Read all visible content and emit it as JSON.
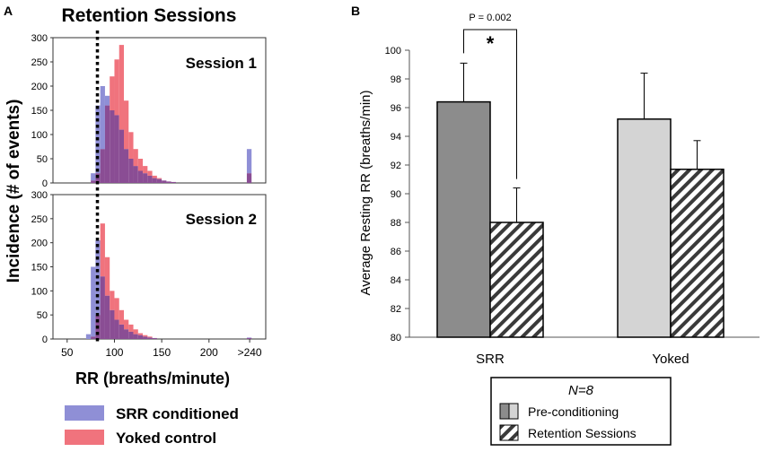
{
  "colors": {
    "srr": "#8f8fd6",
    "yoked": "#f0737d",
    "overlap": "#8a4d94",
    "bar_srr_pre": "#8c8c8c",
    "bar_yoked_pre": "#d4d4d4"
  },
  "panel_a": {
    "letter": "A",
    "title": "Retention Sessions",
    "ylabel": "Incidence (# of events)",
    "xlabel": "RR (breaths/minute)",
    "yticks": [
      "0",
      "50",
      "100",
      "150",
      "200",
      "250",
      "300"
    ],
    "xticks": [
      "50",
      "100",
      "150",
      "200",
      ">240"
    ],
    "legend": [
      {
        "label": "SRR conditioned",
        "color_key": "srr"
      },
      {
        "label": "Yoked control",
        "color_key": "yoked"
      }
    ]
  },
  "panel_b": {
    "letter": "B",
    "ylabel": "Average Resting RR (breaths/min)",
    "significance": "P = 0.002",
    "star": "*",
    "legend_title": "N=8",
    "legend_items": [
      "Pre-conditioning",
      "Retention Sessions"
    ]
  },
  "chart_data": [
    {
      "type": "bar",
      "subtype": "histogram",
      "title": "Session 1",
      "xlabel": "RR (breaths/minute)",
      "ylabel": "Incidence (# of events)",
      "ylim": [
        0,
        300
      ],
      "xlim": [
        35,
        260
      ],
      "bin_width": 5,
      "threshold_line_x": 82,
      "series": [
        {
          "name": "SRR conditioned",
          "bin_starts": [
            75,
            80,
            85,
            90,
            95,
            100,
            105,
            110,
            115,
            120,
            125,
            130,
            135,
            140,
            145,
            150,
            155,
            160,
            240
          ],
          "values": [
            20,
            160,
            200,
            180,
            150,
            140,
            110,
            70,
            50,
            35,
            25,
            20,
            15,
            10,
            8,
            5,
            3,
            2,
            70
          ]
        },
        {
          "name": "Yoked control",
          "bin_starts": [
            75,
            80,
            85,
            90,
            95,
            100,
            105,
            110,
            115,
            120,
            125,
            130,
            135,
            140,
            145,
            150,
            155,
            160,
            240
          ],
          "values": [
            5,
            20,
            70,
            160,
            220,
            255,
            285,
            170,
            105,
            70,
            50,
            35,
            25,
            15,
            10,
            5,
            3,
            2,
            20
          ]
        }
      ]
    },
    {
      "type": "bar",
      "subtype": "histogram",
      "title": "Session 2",
      "xlabel": "RR (breaths/minute)",
      "ylabel": "Incidence (# of events)",
      "ylim": [
        0,
        300
      ],
      "xlim": [
        35,
        260
      ],
      "bin_width": 5,
      "threshold_line_x": 82,
      "series": [
        {
          "name": "SRR conditioned",
          "bin_starts": [
            70,
            75,
            80,
            85,
            90,
            95,
            100,
            105,
            110,
            115,
            120,
            125,
            130,
            135,
            140,
            240
          ],
          "values": [
            10,
            150,
            205,
            130,
            90,
            60,
            40,
            30,
            20,
            15,
            10,
            8,
            5,
            3,
            2,
            3
          ]
        },
        {
          "name": "Yoked control",
          "bin_starts": [
            70,
            75,
            80,
            85,
            90,
            95,
            100,
            105,
            110,
            115,
            120,
            125,
            130,
            135,
            140,
            240
          ],
          "values": [
            0,
            5,
            50,
            240,
            170,
            100,
            85,
            60,
            40,
            30,
            20,
            12,
            8,
            5,
            2,
            2
          ]
        }
      ]
    },
    {
      "type": "bar",
      "title": "",
      "xlabel": "",
      "ylabel": "Average Resting RR (breaths/min)",
      "ylim": [
        80,
        100
      ],
      "yticks": [
        80,
        82,
        84,
        86,
        88,
        90,
        92,
        94,
        96,
        98,
        100
      ],
      "categories": [
        "SRR",
        "Yoked"
      ],
      "series": [
        {
          "name": "Pre-conditioning",
          "values": [
            96.4,
            95.2
          ],
          "error": [
            2.7,
            3.2
          ]
        },
        {
          "name": "Retention Sessions",
          "values": [
            88.0,
            91.7
          ],
          "error": [
            2.4,
            2.0
          ]
        }
      ],
      "annotation": {
        "text": "P = 0.002",
        "marker": "*",
        "between": [
          "SRR Pre-conditioning",
          "SRR Retention Sessions"
        ]
      }
    }
  ]
}
